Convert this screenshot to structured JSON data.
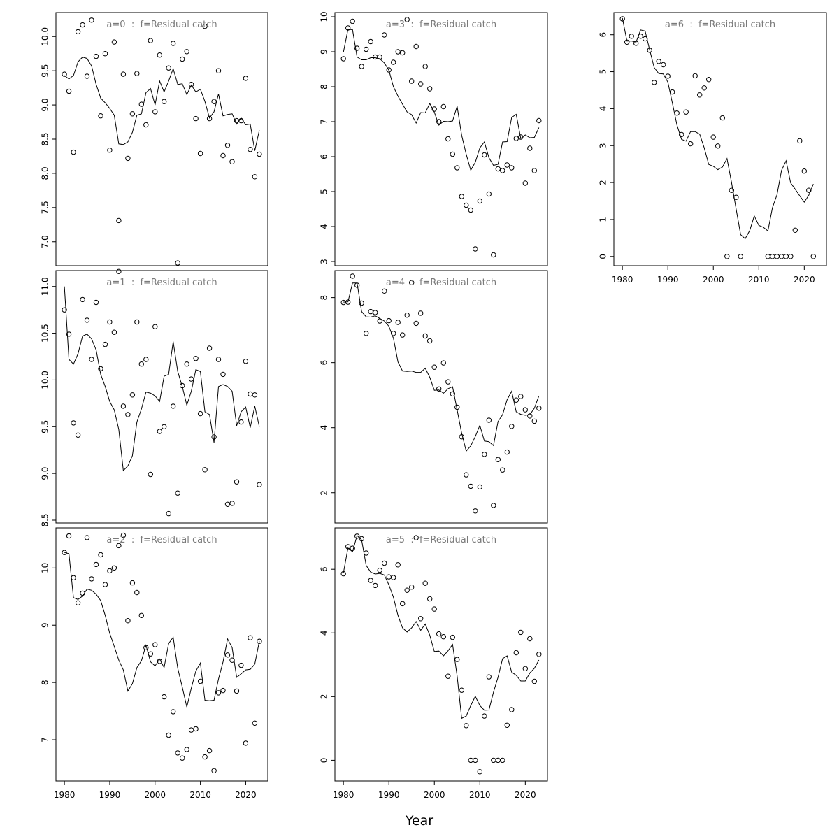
{
  "figure": {
    "xlabel": "Year"
  },
  "chart_data": [
    {
      "type": "scatter+line",
      "title": "a=0  :  f=Residual catch",
      "xlim": [
        1980,
        2023
      ],
      "ylim": [
        6.65,
        10.35
      ],
      "yticks": [
        7.0,
        7.5,
        8.0,
        8.5,
        9.0,
        9.5,
        10.0
      ],
      "yticklabels": [
        "7.0",
        "7.5",
        "8.0",
        "8.5",
        "9.0",
        "9.5",
        "10.0"
      ],
      "xticks": [
        1980,
        1990,
        2000,
        2010,
        2020
      ],
      "show_xticks": false,
      "years": [
        1980,
        1981,
        1982,
        1983,
        1984,
        1985,
        1986,
        1987,
        1988,
        1989,
        1990,
        1991,
        1992,
        1993,
        1994,
        1995,
        1996,
        1997,
        1998,
        1999,
        2000,
        2001,
        2002,
        2003,
        2004,
        2005,
        2006,
        2007,
        2008,
        2009,
        2010,
        2011,
        2012,
        2013,
        2014,
        2015,
        2016,
        2017,
        2018,
        2019,
        2020,
        2021,
        2022,
        2023
      ],
      "observed": [
        9.45,
        9.2,
        8.31,
        10.07,
        10.17,
        9.42,
        10.24,
        9.71,
        8.84,
        9.75,
        8.34,
        9.92,
        7.31,
        9.45,
        8.22,
        8.87,
        9.46,
        9.01,
        8.71,
        9.94,
        8.9,
        9.73,
        9.05,
        9.54,
        9.9,
        6.69,
        9.67,
        9.78,
        9.3,
        8.8,
        8.29,
        10.15,
        8.8,
        9.05,
        9.5,
        8.26,
        8.41,
        8.17,
        8.77,
        8.77,
        9.39,
        8.35,
        7.95,
        8.28
      ],
      "fitted": [
        9.43,
        9.38,
        9.43,
        9.63,
        9.7,
        9.68,
        9.57,
        9.3,
        9.1,
        9.03,
        8.95,
        8.85,
        8.43,
        8.42,
        8.46,
        8.6,
        8.85,
        8.87,
        9.18,
        9.24,
        9.0,
        9.35,
        9.19,
        9.35,
        9.53,
        9.3,
        9.31,
        9.15,
        9.29,
        9.19,
        9.23,
        9.05,
        8.81,
        8.9,
        9.16,
        8.84,
        8.86,
        8.87,
        8.72,
        8.81,
        8.71,
        8.72,
        8.33,
        8.63
      ]
    },
    {
      "type": "scatter+line",
      "title": "a=1  :  f=Residual catch",
      "xlim": [
        1980,
        2023
      ],
      "ylim": [
        8.47,
        11.17
      ],
      "yticks": [
        8.5,
        9.0,
        9.5,
        10.0,
        10.5,
        11.0
      ],
      "yticklabels": [
        "8.5",
        "9.0",
        "9.5",
        "10.0",
        "10.5",
        "11.0"
      ],
      "xticks": [
        1980,
        1990,
        2000,
        2010,
        2020
      ],
      "show_xticks": false,
      "years": [
        1980,
        1981,
        1982,
        1983,
        1984,
        1985,
        1986,
        1987,
        1988,
        1989,
        1990,
        1991,
        1992,
        1993,
        1994,
        1995,
        1996,
        1997,
        1998,
        1999,
        2000,
        2001,
        2002,
        2003,
        2004,
        2005,
        2006,
        2007,
        2008,
        2009,
        2010,
        2011,
        2012,
        2013,
        2014,
        2015,
        2016,
        2017,
        2018,
        2019,
        2020,
        2021,
        2022,
        2023
      ],
      "observed": [
        10.75,
        10.49,
        9.54,
        9.41,
        10.86,
        10.64,
        10.22,
        10.83,
        10.12,
        10.38,
        10.62,
        10.51,
        11.16,
        9.72,
        9.63,
        9.84,
        10.62,
        10.17,
        10.22,
        8.99,
        10.57,
        9.45,
        9.5,
        8.57,
        9.72,
        8.79,
        9.94,
        10.17,
        10.01,
        10.23,
        9.64,
        9.04,
        10.34,
        9.39,
        10.22,
        10.06,
        8.67,
        8.68,
        8.91,
        9.55,
        10.2,
        9.85,
        9.84,
        8.88
      ],
      "fitted": [
        11.0,
        10.22,
        10.17,
        10.28,
        10.47,
        10.49,
        10.44,
        10.32,
        10.06,
        9.93,
        9.77,
        9.68,
        9.47,
        9.03,
        9.08,
        9.19,
        9.55,
        9.69,
        9.87,
        9.86,
        9.83,
        9.77,
        10.04,
        10.06,
        10.41,
        10.09,
        9.93,
        9.73,
        9.88,
        10.11,
        10.09,
        9.66,
        9.63,
        9.33,
        9.93,
        9.95,
        9.93,
        9.88,
        9.51,
        9.66,
        9.71,
        9.49,
        9.72,
        9.5
      ]
    },
    {
      "type": "scatter+line",
      "title": "a=2  :  f=Residual catch",
      "xlim": [
        1980,
        2023
      ],
      "ylim": [
        6.28,
        10.7
      ],
      "yticks": [
        7,
        8,
        9,
        10
      ],
      "yticklabels": [
        "7",
        "8",
        "9",
        "10"
      ],
      "xticks": [
        1980,
        1990,
        2000,
        2010,
        2020
      ],
      "xticklabels": [
        "1980",
        "1990",
        "2000",
        "2010",
        "2020"
      ],
      "show_xticks": true,
      "years": [
        1980,
        1981,
        1982,
        1983,
        1984,
        1985,
        1986,
        1987,
        1988,
        1989,
        1990,
        1991,
        1992,
        1993,
        1994,
        1995,
        1996,
        1997,
        1998,
        1999,
        2000,
        2001,
        2002,
        2003,
        2004,
        2005,
        2006,
        2007,
        2008,
        2009,
        2010,
        2011,
        2012,
        2013,
        2014,
        2015,
        2016,
        2017,
        2018,
        2019,
        2020,
        2021,
        2022,
        2023
      ],
      "observed": [
        10.27,
        10.56,
        9.83,
        9.39,
        9.56,
        10.53,
        9.81,
        10.06,
        10.23,
        9.71,
        9.95,
        10.0,
        10.39,
        10.57,
        9.08,
        9.74,
        9.57,
        9.17,
        8.61,
        8.5,
        8.66,
        8.37,
        7.75,
        7.08,
        7.49,
        6.77,
        6.68,
        6.83,
        7.17,
        7.19,
        8.02,
        6.7,
        6.81,
        6.46,
        7.82,
        7.86,
        8.48,
        8.39,
        7.85,
        8.3,
        6.94,
        8.78,
        7.29,
        8.72
      ],
      "fitted": [
        10.27,
        10.25,
        9.48,
        9.45,
        9.51,
        9.63,
        9.61,
        9.54,
        9.43,
        9.17,
        8.86,
        8.63,
        8.39,
        8.22,
        7.85,
        7.98,
        8.26,
        8.38,
        8.65,
        8.36,
        8.29,
        8.41,
        8.26,
        8.68,
        8.79,
        8.25,
        7.92,
        7.57,
        7.9,
        8.2,
        8.34,
        7.69,
        7.68,
        7.69,
        8.06,
        8.36,
        8.76,
        8.61,
        8.09,
        8.15,
        8.22,
        8.23,
        8.32,
        8.72
      ]
    },
    {
      "type": "scatter+line",
      "title": "a=3  :  f=Residual catch",
      "xlim": [
        1980,
        2023
      ],
      "ylim": [
        2.88,
        10.12
      ],
      "yticks": [
        3,
        4,
        5,
        6,
        7,
        8,
        9,
        10
      ],
      "yticklabels": [
        "3",
        "4",
        "5",
        "6",
        "7",
        "8",
        "9",
        "10"
      ],
      "xticks": [
        1980,
        1990,
        2000,
        2010,
        2020
      ],
      "show_xticks": false,
      "years": [
        1980,
        1981,
        1982,
        1983,
        1984,
        1985,
        1986,
        1987,
        1988,
        1989,
        1990,
        1991,
        1992,
        1993,
        1994,
        1995,
        1996,
        1997,
        1998,
        1999,
        2000,
        2001,
        2002,
        2003,
        2004,
        2005,
        2006,
        2007,
        2008,
        2009,
        2010,
        2011,
        2012,
        2013,
        2014,
        2015,
        2016,
        2017,
        2018,
        2019,
        2020,
        2021,
        2022,
        2023
      ],
      "observed": [
        8.8,
        9.68,
        9.87,
        9.1,
        8.58,
        9.07,
        9.29,
        8.85,
        8.85,
        9.48,
        8.48,
        8.7,
        9.0,
        8.97,
        9.92,
        8.16,
        9.15,
        8.08,
        8.58,
        7.94,
        7.36,
        7.0,
        7.43,
        6.51,
        6.07,
        5.68,
        4.86,
        4.61,
        4.47,
        3.36,
        4.73,
        6.05,
        4.93,
        3.19,
        5.65,
        5.6,
        5.76,
        5.68,
        6.52,
        6.56,
        5.24,
        6.24,
        5.6,
        7.03
      ],
      "fitted": [
        8.99,
        9.64,
        9.63,
        8.85,
        8.77,
        8.77,
        8.83,
        8.83,
        8.8,
        8.68,
        8.47,
        8.0,
        7.73,
        7.5,
        7.28,
        7.2,
        6.96,
        7.26,
        7.25,
        7.52,
        7.27,
        6.9,
        7.01,
        7.0,
        7.02,
        7.44,
        6.61,
        6.07,
        5.61,
        5.84,
        6.25,
        6.42,
        5.97,
        5.75,
        5.78,
        6.42,
        6.43,
        7.12,
        7.21,
        6.52,
        6.62,
        6.54,
        6.55,
        6.83
      ]
    },
    {
      "type": "scatter+line",
      "title": "a=4  :  f=Residual catch",
      "xlim": [
        1980,
        2023
      ],
      "ylim": [
        1.07,
        8.83
      ],
      "yticks": [
        2,
        4,
        6,
        8
      ],
      "yticklabels": [
        "2",
        "4",
        "6",
        "8"
      ],
      "xticks": [
        1980,
        1990,
        2000,
        2010,
        2020
      ],
      "show_xticks": false,
      "years": [
        1980,
        1981,
        1982,
        1983,
        1984,
        1985,
        1986,
        1987,
        1988,
        1989,
        1990,
        1991,
        1992,
        1993,
        1994,
        1995,
        1996,
        1997,
        1998,
        1999,
        2000,
        2001,
        2002,
        2003,
        2004,
        2005,
        2006,
        2007,
        2008,
        2009,
        2010,
        2011,
        2012,
        2013,
        2014,
        2015,
        2016,
        2017,
        2018,
        2019,
        2020,
        2021,
        2022,
        2023
      ],
      "observed": [
        7.85,
        7.86,
        8.66,
        8.38,
        7.83,
        6.9,
        7.57,
        7.54,
        7.28,
        8.2,
        7.29,
        6.9,
        7.24,
        6.85,
        7.46,
        8.46,
        7.21,
        7.52,
        6.82,
        6.67,
        5.86,
        5.19,
        5.99,
        5.41,
        5.04,
        4.63,
        3.72,
        2.55,
        2.2,
        1.44,
        2.18,
        3.18,
        4.23,
        1.61,
        3.02,
        2.7,
        3.25,
        4.04,
        4.85,
        4.96,
        4.55,
        4.36,
        4.2,
        4.6
      ],
      "fitted": [
        7.86,
        7.87,
        8.45,
        8.45,
        7.57,
        7.41,
        7.4,
        7.44,
        7.36,
        7.28,
        7.12,
        6.75,
        6.02,
        5.74,
        5.73,
        5.74,
        5.7,
        5.7,
        5.83,
        5.55,
        5.15,
        5.16,
        5.06,
        5.2,
        5.26,
        4.55,
        3.83,
        3.28,
        3.44,
        3.73,
        4.07,
        3.59,
        3.57,
        3.45,
        4.19,
        4.4,
        4.86,
        5.12,
        4.49,
        4.41,
        4.38,
        4.4,
        4.6,
        4.98
      ]
    },
    {
      "type": "scatter+line",
      "title": "a=5  :  f=Residual catch",
      "xlim": [
        1980,
        2023
      ],
      "ylim": [
        -0.65,
        7.3
      ],
      "yticks": [
        0,
        2,
        4,
        6
      ],
      "yticklabels": [
        "0",
        "2",
        "4",
        "6"
      ],
      "xticks": [
        1980,
        1990,
        2000,
        2010,
        2020
      ],
      "xticklabels": [
        "1980",
        "1990",
        "2000",
        "2010",
        "2020"
      ],
      "show_xticks": true,
      "years": [
        1980,
        1981,
        1982,
        1983,
        1984,
        1985,
        1986,
        1987,
        1988,
        1989,
        1990,
        1991,
        1992,
        1993,
        1994,
        1995,
        1996,
        1997,
        1998,
        1999,
        2000,
        2001,
        2002,
        2003,
        2004,
        2005,
        2006,
        2007,
        2008,
        2009,
        2010,
        2011,
        2012,
        2013,
        2014,
        2015,
        2016,
        2017,
        2018,
        2019,
        2020,
        2021,
        2022,
        2023
      ],
      "observed": [
        5.86,
        6.71,
        6.66,
        7.04,
        6.96,
        6.51,
        5.65,
        5.49,
        5.97,
        6.19,
        5.76,
        5.74,
        6.14,
        4.92,
        5.34,
        5.44,
        6.99,
        4.45,
        5.56,
        5.07,
        4.75,
        3.97,
        3.88,
        2.64,
        3.86,
        3.17,
        2.2,
        1.09,
        0.0,
        0.0,
        -0.36,
        1.39,
        2.62,
        0.0,
        0.0,
        0.0,
        1.1,
        1.59,
        3.38,
        4.02,
        2.88,
        3.82,
        2.48,
        3.33
      ],
      "fitted": [
        5.89,
        6.67,
        6.55,
        7.06,
        6.92,
        6.12,
        5.91,
        5.85,
        5.87,
        5.82,
        5.51,
        5.12,
        4.55,
        4.16,
        4.03,
        4.16,
        4.36,
        4.08,
        4.28,
        3.93,
        3.42,
        3.43,
        3.28,
        3.44,
        3.64,
        2.65,
        1.32,
        1.39,
        1.72,
        2.01,
        1.72,
        1.57,
        1.58,
        2.14,
        2.61,
        3.19,
        3.28,
        2.77,
        2.67,
        2.49,
        2.49,
        2.74,
        2.89,
        3.15
      ]
    },
    {
      "type": "scatter+line",
      "title": "a=6  :  f=Residual catch",
      "xlim": [
        1980,
        2023
      ],
      "ylim": [
        -0.25,
        6.6
      ],
      "yticks": [
        0,
        1,
        2,
        3,
        4,
        5,
        6
      ],
      "yticklabels": [
        "0",
        "1",
        "2",
        "3",
        "4",
        "5",
        "6"
      ],
      "xticks": [
        1980,
        1990,
        2000,
        2010,
        2020
      ],
      "xticklabels": [
        "1980",
        "1990",
        "2000",
        "2010",
        "2020"
      ],
      "show_xticks": true,
      "years": [
        1980,
        1981,
        1982,
        1983,
        1984,
        1985,
        1986,
        1987,
        1988,
        1989,
        1990,
        1991,
        1992,
        1993,
        1994,
        1995,
        1996,
        1997,
        1998,
        1999,
        2000,
        2001,
        2002,
        2003,
        2004,
        2005,
        2006,
        2007,
        2008,
        2009,
        2010,
        2011,
        2012,
        2013,
        2014,
        2015,
        2016,
        2017,
        2018,
        2019,
        2020,
        2021,
        2022,
        2023
      ],
      "observed": [
        6.43,
        5.8,
        5.96,
        5.77,
        5.96,
        5.89,
        5.58,
        4.71,
        5.28,
        5.19,
        4.88,
        4.45,
        3.88,
        3.3,
        3.91,
        3.05,
        4.89,
        4.37,
        4.56,
        4.79,
        3.23,
        2.99,
        3.75,
        0.0,
        1.79,
        1.6,
        0.0,
        null,
        null,
        null,
        null,
        null,
        0.0,
        0.0,
        0.0,
        0.0,
        0.0,
        0.0,
        0.71,
        3.13,
        2.31,
        1.79,
        0.0,
        null
      ],
      "fitted": [
        6.45,
        5.83,
        5.83,
        5.8,
        6.13,
        6.1,
        5.59,
        5.11,
        4.95,
        4.94,
        4.72,
        4.15,
        3.56,
        3.17,
        3.12,
        3.38,
        3.38,
        3.31,
        2.94,
        2.49,
        2.44,
        2.35,
        2.42,
        2.65,
        2.0,
        1.29,
        0.59,
        0.48,
        0.7,
        1.1,
        0.84,
        0.79,
        0.69,
        1.32,
        1.67,
        2.33,
        2.59,
        1.99,
        1.82,
        1.64,
        1.47,
        1.66,
        1.96,
        null
      ]
    }
  ]
}
